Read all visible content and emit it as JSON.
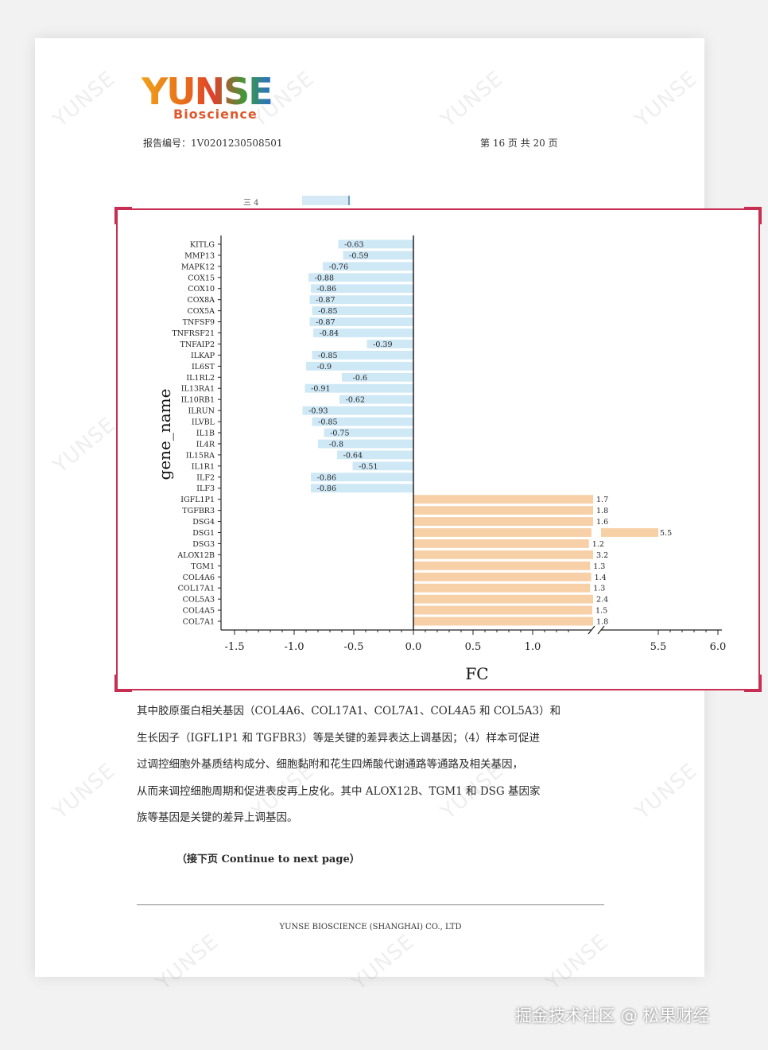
{
  "header": {
    "logo_main": "YUNSE",
    "logo_sub": "Bioscience",
    "report_no": "报告编号：1V0201230508501",
    "page_no": "第 16 页 共 20 页",
    "fragment_text": "三 4",
    "fragment_bar_text": "三"
  },
  "chart_data": {
    "type": "bar",
    "orientation": "horizontal",
    "ylabel": "gene_name",
    "xlabel": "FC",
    "x_ticks": [
      "-1.5",
      "-1.0",
      "-0.5",
      "0.0",
      "0.5",
      "1.0",
      "5.5",
      "6.0"
    ],
    "x_axis_break": true,
    "xlim": [
      -1.5,
      6.0
    ],
    "colors": {
      "down": "#cfe8f6",
      "up": "#f8d0a8"
    },
    "categories": [
      "KITLG",
      "MMP13",
      "MAPK12",
      "COX15",
      "COX10",
      "COX8A",
      "COX5A",
      "TNFSF9",
      "TNFRSF21",
      "TNFAIP2",
      "ILKAP",
      "IL6ST",
      "IL1RL2",
      "IL13RA1",
      "IL10RB1",
      "ILRUN",
      "ILVBL",
      "IL1B",
      "IL4R",
      "IL15RA",
      "IL1R1",
      "ILF2",
      "ILF3",
      "IGFL1P1",
      "TGFBR3",
      "DSG4",
      "DSG1",
      "DSG3",
      "ALOX12B",
      "TGM1",
      "COL4A6",
      "COL17A1",
      "COL5A3",
      "COL4A5",
      "COL7A1"
    ],
    "values": [
      -0.63,
      -0.59,
      -0.76,
      -0.88,
      -0.86,
      -0.87,
      -0.85,
      -0.87,
      -0.84,
      -0.39,
      -0.85,
      -0.9,
      -0.6,
      -0.91,
      -0.62,
      -0.93,
      -0.85,
      -0.75,
      -0.8,
      -0.64,
      -0.51,
      -0.86,
      -0.86,
      1.7,
      1.8,
      1.6,
      5.5,
      1.2,
      3.2,
      1.3,
      1.4,
      1.3,
      2.4,
      1.5,
      1.8
    ],
    "value_labels": [
      "-0.63",
      "-0.59",
      "-0.76",
      "-0.88",
      "-0.86",
      "-0.87",
      "-0.85",
      "-0.87",
      "-0.84",
      "-0.39",
      "-0.85",
      "-0.9",
      "-0.6",
      "-0.91",
      "-0.62",
      "-0.93",
      "-0.85",
      "-0.75",
      "-0.8",
      "-0.64",
      "-0.51",
      "-0.86",
      "-0.86",
      "1.7",
      "1.8",
      "1.6",
      "5.5",
      "1.2",
      "3.2",
      "1.3",
      "1.4",
      "1.3",
      "2.4",
      "1.5",
      "1.8"
    ]
  },
  "body": {
    "lines": [
      "其中胶原蛋白相关基因（COL4A6、COL17A1、COL7A1、COL4A5 和 COL5A3）和",
      "生长因子（IGFL1P1 和 TGFBR3）等是关键的差异表达上调基因；（4）样本可促进",
      "过调控细胞外基质结构成分、细胞黏附和花生四烯酸代谢通路等通路及相关基因，",
      "从而来调控细胞周期和促进表皮再上皮化。其中 ALOX12B、TGM1 和 DSG 基因家",
      "族等基因是关键的差异上调基因。"
    ],
    "continue_note": "（接下页  Continue to next page）"
  },
  "footer": {
    "company": "YUNSE BIOSCIENCE (SHANGHAI) CO., LTD"
  },
  "watermark": "YUNSE",
  "credit": "掘金技术社区 @ 松果财经"
}
